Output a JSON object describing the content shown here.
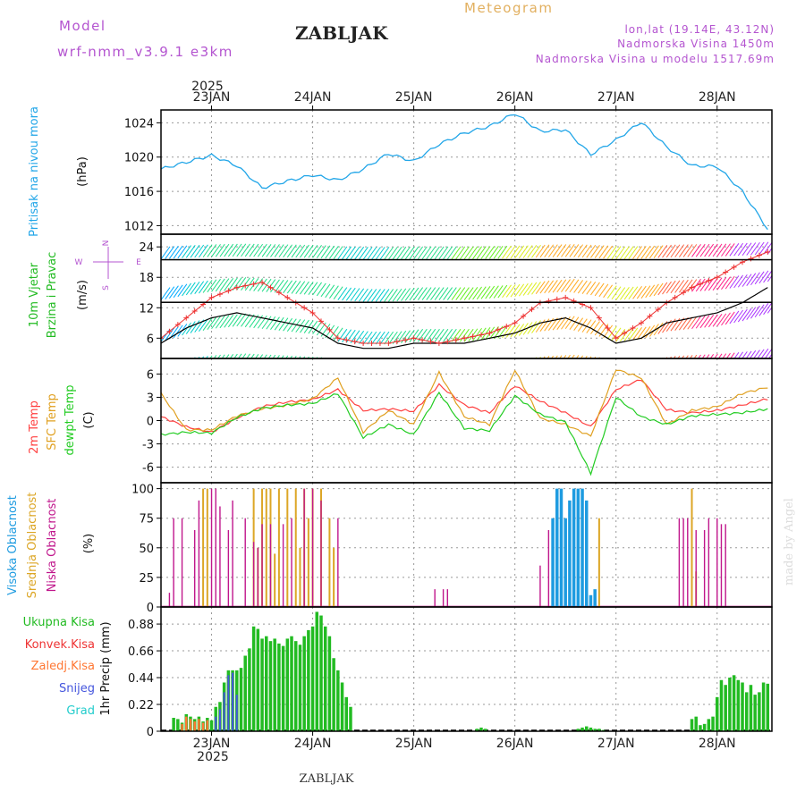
{
  "header": {
    "model_label": "Model",
    "model_name": "wrf-nmm_v3.9.1 e3km",
    "station": "ZABLJAK",
    "meteogram": "Meteogram",
    "lonlat": "lon,lat (19.14E, 43.12N)",
    "elevation": "Nadmorska Visina 1450m",
    "model_elevation": "Nadmorska Visina u modelu 1517.69m",
    "year": "2025",
    "footer_station": "ZABLJAK",
    "watermark": "made by Angel"
  },
  "colors": {
    "pressure": "#22a6e8",
    "temp2m": "#ff4040",
    "sfc": "#e0a020",
    "dewpt": "#22cc22",
    "high_cloud": "#1e9be0",
    "mid_cloud": "#dca626",
    "low_cloud": "#c0168c",
    "total_precip": "#22bb22",
    "conv_precip": "#ee3333",
    "frz_precip": "#ff7733",
    "snow": "#4455dd",
    "hail": "#22cccc",
    "header_purple": "#b455d0",
    "meteogram_gold": "#e2b060"
  },
  "chart_data": [
    {
      "type": "line",
      "panel": "pressure",
      "ylabel_main": "Pritisak na nivou mora",
      "ylabel_unit": "(hPa)",
      "ylim": [
        1011,
        1025.5
      ],
      "yticks": [
        "1024",
        "1020",
        "1016",
        "1012"
      ],
      "ytick_values": [
        1024,
        1020,
        1016,
        1012
      ],
      "x_hours": [
        0,
        6,
        12,
        18,
        24,
        30,
        36,
        42,
        48,
        54,
        60,
        66,
        72,
        78,
        84,
        90,
        96,
        102,
        108,
        114,
        120,
        126,
        132,
        138,
        144
      ],
      "series": [
        {
          "name": "SLP",
          "values": [
            1018.6,
            1019.4,
            1020.2,
            1019.0,
            1016.4,
            1017.2,
            1017.9,
            1017.3,
            1018.6,
            1020.4,
            1019.5,
            1021.5,
            1022.8,
            1023.6,
            1025.1,
            1023.0,
            1023.2,
            1020.3,
            1022.0,
            1024.1,
            1021.2,
            1019.0,
            1018.9,
            1016.0,
            1011.6
          ]
        }
      ]
    },
    {
      "type": "line",
      "panel": "wind",
      "ylabel_main": "10m Vjetar",
      "ylabel_sub": "Brzina i Pravac",
      "ylabel_unit": "(m/s)",
      "compass": "N E S W",
      "ylim": [
        2,
        26.5
      ],
      "yticks": [
        "24",
        "18",
        "12",
        "6"
      ],
      "ytick_values": [
        24,
        18,
        12,
        6
      ],
      "x_hours": [
        0,
        6,
        12,
        18,
        24,
        30,
        36,
        42,
        48,
        54,
        60,
        66,
        72,
        78,
        84,
        90,
        96,
        102,
        108,
        114,
        120,
        126,
        132,
        138,
        144
      ],
      "series": [
        {
          "name": "speed",
          "values": [
            5,
            8,
            10,
            11,
            10,
            9,
            8,
            5,
            4,
            4,
            5,
            5,
            5,
            6,
            7,
            9,
            10,
            8,
            5,
            6,
            9,
            10,
            11,
            13,
            16
          ]
        },
        {
          "name": "gust",
          "values": [
            6,
            10,
            14,
            16,
            17,
            14,
            11,
            6,
            5,
            5,
            6,
            5,
            6,
            7,
            9,
            13,
            14,
            12,
            6,
            9,
            13,
            16,
            18,
            21,
            23
          ]
        }
      ]
    },
    {
      "type": "line",
      "panel": "temperature",
      "ylabel_a": "2m Temp",
      "ylabel_b": "SFC Temp",
      "ylabel_c": "dewpt Temp",
      "ylabel_unit": "(C)",
      "ylim": [
        -8,
        8
      ],
      "yticks": [
        "6",
        "3",
        "0",
        "-3",
        "-6"
      ],
      "ytick_values": [
        6,
        3,
        0,
        -3,
        -6
      ],
      "x_hours": [
        0,
        6,
        12,
        18,
        24,
        30,
        36,
        42,
        48,
        54,
        60,
        66,
        72,
        78,
        84,
        90,
        96,
        102,
        108,
        114,
        120,
        126,
        132,
        138,
        144
      ],
      "series": [
        {
          "name": "2m Temp",
          "values": [
            0.5,
            -0.8,
            -1.5,
            0.3,
            1.8,
            2.4,
            2.7,
            4.0,
            1.3,
            1.5,
            1.2,
            4.6,
            2.0,
            1.0,
            4.5,
            2.5,
            1.0,
            -0.8,
            4.0,
            5.3,
            1.4,
            1.0,
            1.3,
            2.0,
            2.8
          ]
        },
        {
          "name": "SFC Temp",
          "values": [
            3.5,
            -1.2,
            -1.2,
            0.6,
            1.5,
            2.0,
            2.8,
            5.5,
            -1.5,
            1.3,
            -0.5,
            6.2,
            0.5,
            -0.5,
            6.5,
            0.3,
            -0.5,
            -2.0,
            6.6,
            5.5,
            -0.5,
            1.3,
            1.8,
            3.5,
            4.3
          ]
        },
        {
          "name": "dewpt Temp",
          "values": [
            -1.8,
            -1.5,
            -1.6,
            0.4,
            1.6,
            2.0,
            2.2,
            3.5,
            -2.2,
            -0.5,
            -1.8,
            3.6,
            -1.0,
            -1.3,
            3.2,
            0.8,
            -0.2,
            -6.8,
            3.0,
            0.5,
            -0.5,
            0.6,
            0.8,
            1.0,
            1.5
          ]
        }
      ]
    },
    {
      "type": "bar",
      "panel": "clouds",
      "ylabel_a": "Visoka Oblacnost",
      "ylabel_b": "Srednja Oblacnost",
      "ylabel_c": "Niska Oblacnost",
      "ylabel_unit": "(%)",
      "ylim": [
        0,
        105
      ],
      "yticks": [
        "100",
        "75",
        "50",
        "25",
        "0"
      ],
      "ytick_values": [
        100,
        75,
        50,
        25,
        0
      ],
      "series": [
        {
          "name": "Visoka Oblacnost",
          "x": [
            93,
            94,
            95,
            96,
            97,
            98,
            99,
            100,
            101,
            102,
            103
          ],
          "values": [
            75,
            100,
            100,
            75,
            90,
            100,
            100,
            100,
            90,
            10,
            15
          ]
        },
        {
          "name": "Srednja Oblacnost",
          "x": [
            10,
            11,
            22,
            23,
            24,
            25,
            26,
            27,
            28,
            30,
            32,
            33,
            34,
            35,
            36,
            38,
            40,
            41,
            104,
            126,
            127
          ],
          "values": [
            100,
            100,
            100,
            50,
            100,
            100,
            100,
            45,
            100,
            100,
            100,
            50,
            100,
            75,
            100,
            100,
            75,
            50,
            75,
            100,
            30
          ]
        },
        {
          "name": "Niska Oblacnost",
          "x": [
            2,
            3,
            5,
            8,
            9,
            12,
            13,
            14,
            16,
            17,
            20,
            22,
            23,
            24,
            26,
            29,
            31,
            34,
            36,
            38,
            42,
            65,
            67,
            68,
            90,
            92,
            123,
            124,
            125,
            127,
            129,
            130,
            132,
            133,
            134
          ],
          "values": [
            12,
            75,
            75,
            65,
            90,
            100,
            100,
            85,
            65,
            90,
            75,
            55,
            50,
            70,
            70,
            70,
            75,
            100,
            100,
            90,
            75,
            15,
            15,
            15,
            35,
            65,
            75,
            75,
            75,
            65,
            65,
            75,
            75,
            70,
            70
          ]
        }
      ]
    },
    {
      "type": "bar",
      "panel": "precip",
      "legend": [
        "Ukupna Kisa",
        "Konvek.Kisa",
        "Zaledj.Kisa",
        "Snijeg",
        "Grad"
      ],
      "ylabel_unit": "1hr Precip (mm)",
      "ylim": [
        0,
        1.02
      ],
      "yticks": [
        "0.88",
        "0.66",
        "0.44",
        "0.22",
        "0"
      ],
      "ytick_values": [
        0.88,
        0.66,
        0.44,
        0.22,
        0
      ],
      "xticks_top": [
        "23JAN",
        "24JAN",
        "25JAN",
        "26JAN",
        "27JAN",
        "28JAN"
      ],
      "xticks_bottom": [
        "23JAN",
        "24JAN",
        "25JAN",
        "26JAN",
        "27JAN",
        "28JAN"
      ],
      "xtick_hours": [
        12,
        36,
        60,
        84,
        108,
        132
      ],
      "series": [
        {
          "name": "Ukupna Kisa",
          "x": [
            3,
            4,
            5,
            6,
            7,
            8,
            9,
            10,
            11,
            12,
            13,
            14,
            15,
            16,
            17,
            18,
            19,
            20,
            21,
            22,
            23,
            24,
            25,
            26,
            27,
            28,
            29,
            30,
            31,
            32,
            33,
            34,
            35,
            36,
            37,
            38,
            39,
            40,
            41,
            42,
            43,
            44,
            45,
            75,
            76,
            77,
            99,
            100,
            101,
            102,
            103,
            104,
            105,
            126,
            127,
            128,
            129,
            130,
            131,
            132,
            133,
            134,
            135,
            136,
            137,
            138,
            139,
            140,
            141,
            142,
            143,
            144
          ],
          "values": [
            0.11,
            0.1,
            0.07,
            0.14,
            0.12,
            0.1,
            0.12,
            0.08,
            0.11,
            0.09,
            0.2,
            0.24,
            0.4,
            0.5,
            0.5,
            0.5,
            0.52,
            0.62,
            0.68,
            0.86,
            0.84,
            0.76,
            0.78,
            0.74,
            0.76,
            0.72,
            0.7,
            0.76,
            0.78,
            0.74,
            0.71,
            0.78,
            0.83,
            0.86,
            0.98,
            0.95,
            0.86,
            0.78,
            0.6,
            0.5,
            0.4,
            0.28,
            0.2,
            0.02,
            0.03,
            0.02,
            0.02,
            0.03,
            0.04,
            0.03,
            0.02,
            0.02,
            0.01,
            0.1,
            0.12,
            0.05,
            0.06,
            0.1,
            0.12,
            0.28,
            0.42,
            0.38,
            0.44,
            0.46,
            0.42,
            0.4,
            0.32,
            0.38,
            0.3,
            0.32,
            0.4,
            0.39
          ]
        },
        {
          "name": "Zaledj.Kisa",
          "x": [
            5,
            6,
            7,
            8,
            9,
            10,
            11
          ],
          "values": [
            0.06,
            0.12,
            0.1,
            0.08,
            0.1,
            0.07,
            0.09
          ]
        },
        {
          "name": "Snijeg",
          "x": [
            13,
            14,
            15,
            16,
            17,
            18
          ],
          "values": [
            0.12,
            0.18,
            0.32,
            0.46,
            0.48,
            0.3
          ]
        }
      ]
    }
  ]
}
